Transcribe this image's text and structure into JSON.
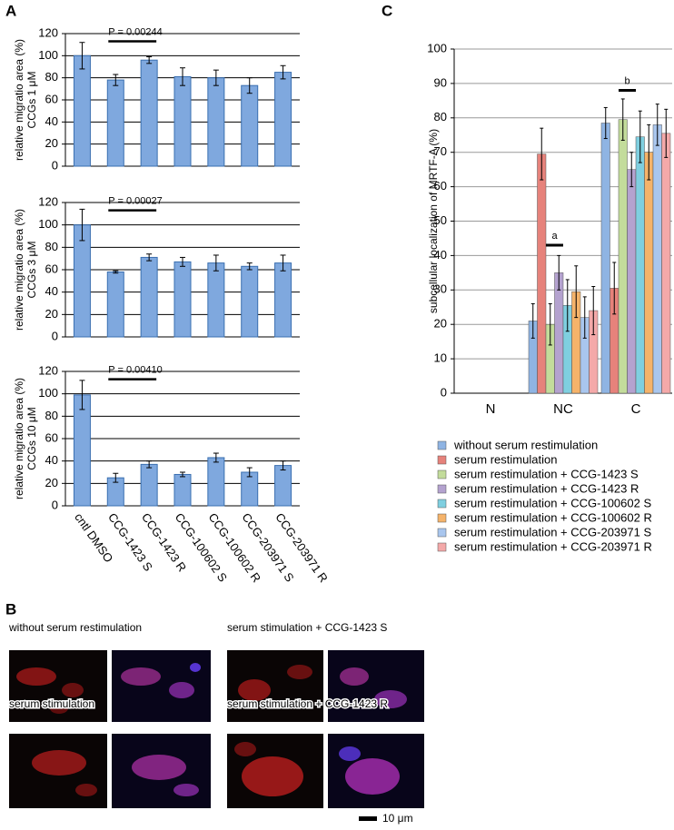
{
  "panel_labels": [
    "A",
    "B",
    "C"
  ],
  "chart_data": [
    {
      "type": "bar",
      "ylabel": [
        "relative migratio area (%)",
        "CCGs  1 μM"
      ],
      "categories": [
        null,
        null,
        null,
        null,
        null,
        null,
        null
      ],
      "values": [
        100,
        78,
        96,
        81,
        80,
        73,
        85
      ],
      "errors": [
        12,
        5,
        3,
        8,
        7,
        7,
        6
      ],
      "color": "#7fa8de",
      "ylim": [
        0,
        120
      ],
      "yticks": [
        0,
        20,
        40,
        60,
        80,
        100,
        120
      ],
      "grid": true,
      "annotation": "P = 0.00244"
    },
    {
      "type": "bar",
      "ylabel": [
        "relative migratio area (%)",
        "CCGs  3 μM"
      ],
      "categories": [
        null,
        null,
        null,
        null,
        null,
        null,
        null
      ],
      "values": [
        100,
        58,
        71,
        67,
        66,
        63,
        66
      ],
      "errors": [
        14,
        1,
        3,
        4,
        7,
        3,
        7
      ],
      "color": "#7fa8de",
      "ylim": [
        0,
        120
      ],
      "yticks": [
        0,
        20,
        40,
        60,
        80,
        100,
        120
      ],
      "grid": true,
      "annotation": "P = 0.00027"
    },
    {
      "type": "bar",
      "ylabel": [
        "relative migratio area (%)",
        "CCGs  10 μM"
      ],
      "categories": [
        "cntl DMSO",
        "CCG-1423 S",
        "CCG-1423 R",
        "CCG-100602 S",
        "CCG-100602 R",
        "CCG-203971 S",
        "CCG-203971 R"
      ],
      "values": [
        99,
        25,
        37,
        28,
        43,
        30,
        36
      ],
      "errors": [
        13,
        4,
        3,
        2,
        4,
        4,
        4
      ],
      "color": "#7fa8de",
      "ylim": [
        0,
        120
      ],
      "yticks": [
        0,
        20,
        40,
        60,
        80,
        100,
        120
      ],
      "grid": true,
      "annotation": "P = 0.00410"
    },
    {
      "type": "bar",
      "ylabel": [
        "subcellular localization of MRTF-A (%)"
      ],
      "categories": [
        "N",
        "NC",
        "C"
      ],
      "series": [
        {
          "name": "without serum restimulation",
          "color": "#8fb4e3",
          "values": [
            0,
            21,
            78.5
          ],
          "errors": [
            0,
            5,
            4.5
          ]
        },
        {
          "name": "serum restimulation",
          "color": "#e6827b",
          "values": [
            0,
            69.5,
            30.5
          ],
          "errors": [
            0,
            7.5,
            7.5
          ]
        },
        {
          "name": "serum restimulation + CCG-1423 S",
          "color": "#c3dc9b",
          "values": [
            0,
            20,
            79.5
          ],
          "errors": [
            0,
            6,
            6
          ]
        },
        {
          "name": "serum restimulation + CCG-1423 R",
          "color": "#b4a2cf",
          "values": [
            0,
            35,
            65
          ],
          "errors": [
            0,
            5,
            5
          ]
        },
        {
          "name": "serum restimulation + CCG-100602 S",
          "color": "#7fcfe0",
          "values": [
            0,
            25.5,
            74.5
          ],
          "errors": [
            0,
            7.5,
            7.5
          ]
        },
        {
          "name": "serum restimulation + CCG-100602 R",
          "color": "#f5b36a",
          "values": [
            0,
            29.5,
            70
          ],
          "errors": [
            0,
            7.5,
            8
          ]
        },
        {
          "name": "serum restimulation + CCG-203971 S",
          "color": "#a9c6ee",
          "values": [
            0,
            22,
            78
          ],
          "errors": [
            0,
            6,
            6
          ]
        },
        {
          "name": "serum restimulation + CCG-203971 R",
          "color": "#f4a9a9",
          "values": [
            0,
            24,
            75.5
          ],
          "errors": [
            0,
            7,
            7
          ]
        }
      ],
      "ylim": [
        0,
        100
      ],
      "yticks": [
        0,
        10,
        20,
        30,
        40,
        50,
        60,
        70,
        80,
        90,
        100
      ],
      "grid": true,
      "annotations": [
        "a",
        "b"
      ]
    }
  ],
  "panel_b": {
    "labels": [
      "without serum restimulation",
      "serum stimulation + CCG-1423 S",
      "serum stimulation",
      "serum stimulation + CCG-1423 R"
    ],
    "scale_bar": "10 μm"
  }
}
